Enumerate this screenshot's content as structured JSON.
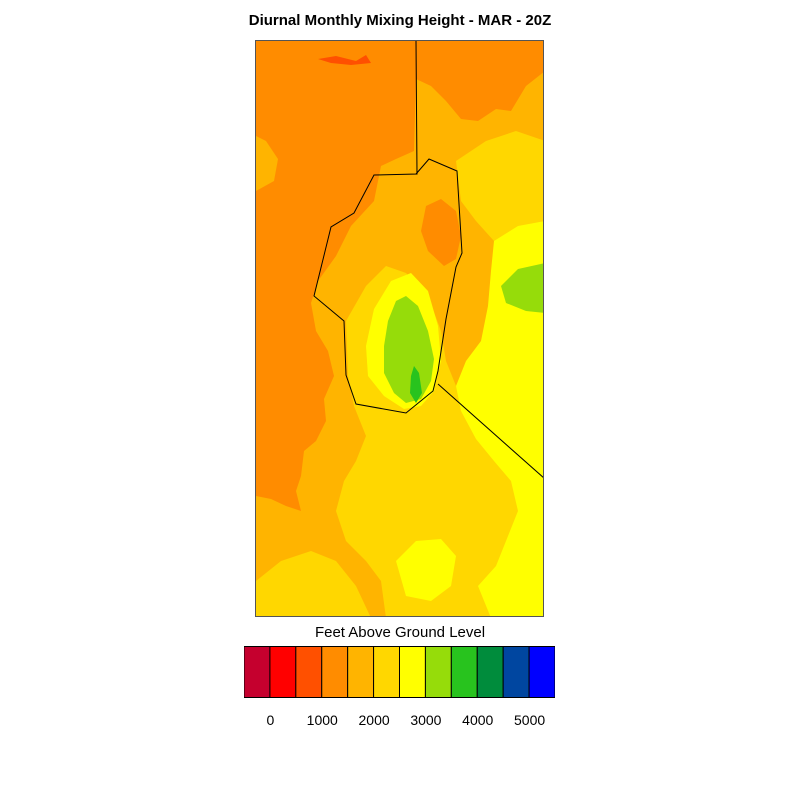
{
  "header": {
    "title": "Diurnal Monthly Mixing Height - MAR - 20Z"
  },
  "legend": {
    "title": "Feet Above Ground Level",
    "colors": [
      "#c5002e",
      "#ff0000",
      "#ff5000",
      "#ff8c00",
      "#ffb400",
      "#ffd700",
      "#ffff00",
      "#96dc0a",
      "#28c31e",
      "#008c3c",
      "#0046a0",
      "#0000ff"
    ],
    "tick_labels": [
      "0",
      "1000",
      "2000",
      "3000",
      "4000",
      "5000"
    ]
  },
  "map": {
    "palette": {
      "orange": "#ff8c00",
      "light_orange": "#ffb400",
      "gold": "#ffd700",
      "yellow": "#ffff00",
      "yellow_green": "#96dc0a",
      "green": "#28c31e",
      "red_orange": "#ff5000",
      "boundary": "#000000"
    }
  }
}
